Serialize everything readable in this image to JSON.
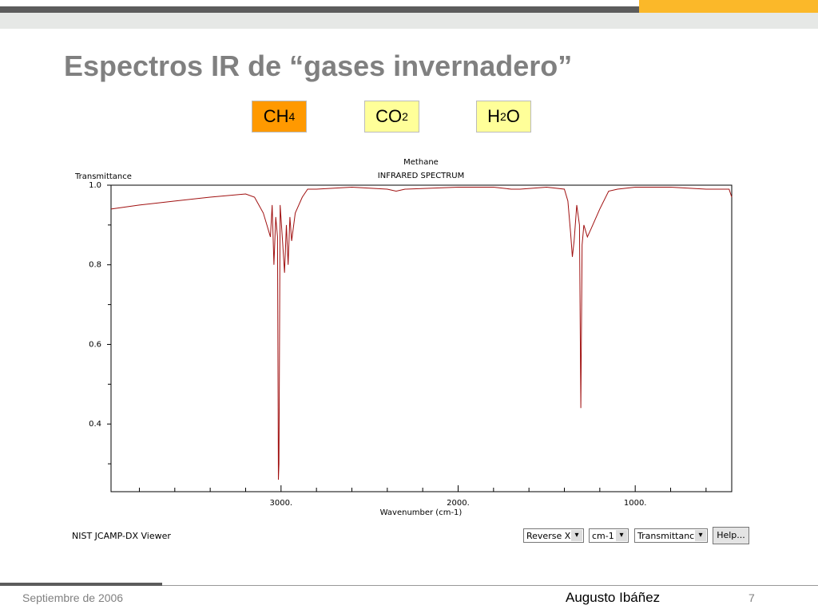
{
  "slide": {
    "title": "Espectros IR de “gases invernadero”",
    "buttons": [
      {
        "text": "CH",
        "sub": "4"
      },
      {
        "text": "CO",
        "sub": "2"
      },
      {
        "text": "H",
        "sub": "2",
        "after": "O"
      }
    ],
    "footer_date": "Septiembre de 2006",
    "footer_author": "Augusto Ibáñez",
    "page_number": "7"
  },
  "chart_data": {
    "type": "line",
    "title": "Methane",
    "subtitle": "INFRARED SPECTRUM",
    "y_label": "Transmittance",
    "x_label": "Wavenumber (cm-1)",
    "x": [
      3960,
      3800,
      3600,
      3400,
      3200,
      3150,
      3100,
      3080,
      3060,
      3050,
      3040,
      3030,
      3020,
      3015,
      3012,
      3005,
      2990,
      2980,
      2970,
      2960,
      2950,
      2940,
      2920,
      2900,
      2880,
      2850,
      2800,
      2600,
      2400,
      2350,
      2300,
      2000,
      1800,
      1700,
      1650,
      1500,
      1400,
      1380,
      1365,
      1355,
      1345,
      1330,
      1315,
      1307,
      1300,
      1290,
      1270,
      1250,
      1230,
      1200,
      1150,
      1100,
      1000,
      800,
      600,
      470,
      455
    ],
    "series": [
      {
        "name": "Methane",
        "color": "#a01010",
        "values": [
          0.94,
          0.95,
          0.96,
          0.97,
          0.978,
          0.97,
          0.93,
          0.9,
          0.87,
          0.95,
          0.8,
          0.92,
          0.87,
          0.26,
          0.3,
          0.95,
          0.85,
          0.78,
          0.9,
          0.8,
          0.92,
          0.86,
          0.93,
          0.95,
          0.97,
          0.99,
          0.99,
          0.995,
          0.99,
          0.985,
          0.99,
          0.995,
          0.995,
          0.99,
          0.99,
          0.995,
          0.99,
          0.96,
          0.88,
          0.82,
          0.86,
          0.95,
          0.9,
          0.44,
          0.85,
          0.9,
          0.87,
          0.89,
          0.91,
          0.94,
          0.985,
          0.99,
          0.995,
          0.995,
          0.99,
          0.99,
          0.97
        ]
      }
    ],
    "xlim": [
      3960,
      455
    ],
    "ylim": [
      0.23,
      1.0
    ],
    "xticks": [
      {
        "value": 3000,
        "label": "3000."
      },
      {
        "value": 2000,
        "label": "2000."
      },
      {
        "value": 1000,
        "label": "1000."
      }
    ],
    "xminorticks": [
      3800,
      3600,
      3400,
      3200,
      2800,
      2600,
      2400,
      2200,
      1800,
      1600,
      1400,
      1200,
      800,
      600
    ],
    "yticks": [
      {
        "value": 1,
        "label": "1.0"
      },
      0.8,
      0.6,
      0.4
    ],
    "yminorticks": [
      0.9,
      0.7,
      0.5,
      0.3
    ]
  },
  "viewer": {
    "name": "NIST JCAMP-DX Viewer",
    "controls": [
      "Reverse X",
      "cm-1",
      "Transmittance"
    ],
    "help": "Help..."
  }
}
